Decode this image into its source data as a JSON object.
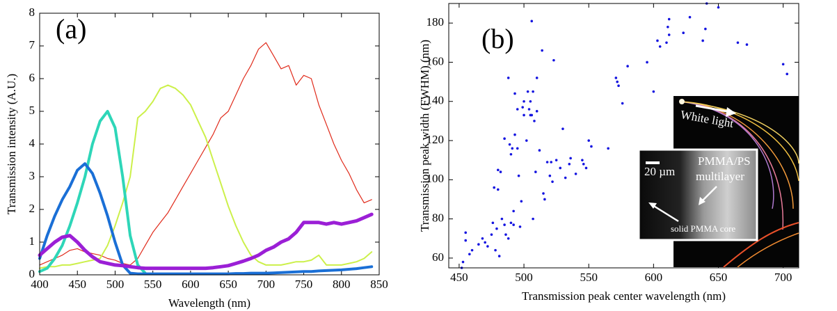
{
  "chart_data": [
    {
      "type": "line",
      "xlabel": "Wavelength (nm)",
      "ylabel": "Transmission intensity (A.U.)",
      "annotations": [
        "(a)"
      ],
      "xlim": [
        400,
        850
      ],
      "xticks": [
        400,
        450,
        500,
        550,
        600,
        650,
        700,
        750,
        800,
        850
      ],
      "ylim": [
        0,
        8
      ],
      "yticks": [
        0,
        1,
        2,
        3,
        4,
        5,
        6,
        7,
        8
      ],
      "x": [
        400,
        410,
        420,
        430,
        440,
        450,
        460,
        470,
        480,
        490,
        500,
        510,
        520,
        530,
        540,
        550,
        560,
        570,
        580,
        590,
        600,
        610,
        620,
        630,
        640,
        650,
        660,
        670,
        680,
        690,
        700,
        710,
        720,
        730,
        740,
        750,
        760,
        770,
        780,
        790,
        800,
        810,
        820,
        830,
        840
      ],
      "series": [
        {
          "color": "#e02a1a",
          "width": 1.2,
          "values": [
            0.3,
            0.4,
            0.5,
            0.6,
            0.75,
            0.8,
            0.7,
            0.65,
            0.6,
            0.5,
            0.45,
            0.35,
            0.3,
            0.5,
            0.9,
            1.3,
            1.6,
            1.9,
            2.3,
            2.7,
            3.1,
            3.5,
            3.9,
            4.3,
            4.8,
            5.0,
            5.5,
            6.0,
            6.4,
            6.9,
            7.1,
            6.7,
            6.3,
            6.4,
            5.8,
            6.1,
            6.0,
            5.2,
            4.6,
            4.0,
            3.5,
            3.1,
            2.6,
            2.2,
            2.3
          ]
        },
        {
          "color": "#ccf04a",
          "width": 2,
          "values": [
            0.2,
            0.25,
            0.25,
            0.3,
            0.3,
            0.35,
            0.4,
            0.45,
            0.5,
            0.9,
            1.5,
            2.2,
            3.0,
            4.8,
            5.0,
            5.3,
            5.7,
            5.8,
            5.7,
            5.5,
            5.2,
            4.7,
            4.2,
            3.5,
            2.8,
            2.1,
            1.5,
            1.0,
            0.6,
            0.4,
            0.3,
            0.3,
            0.3,
            0.35,
            0.4,
            0.4,
            0.45,
            0.6,
            0.3,
            0.3,
            0.3,
            0.35,
            0.4,
            0.5,
            0.7
          ]
        },
        {
          "color": "#2ed6b8",
          "width": 4,
          "values": [
            0.1,
            0.2,
            0.5,
            0.9,
            1.5,
            2.2,
            3.0,
            4.0,
            4.7,
            5.0,
            4.5,
            3.0,
            1.2,
            0.3,
            0.05,
            null,
            null,
            null,
            null,
            null,
            null,
            null,
            null,
            null,
            null,
            null,
            null,
            null,
            null,
            null,
            null,
            null,
            null,
            null,
            null,
            null,
            null,
            null,
            null,
            null,
            null,
            null,
            null,
            null,
            null
          ]
        },
        {
          "color": "#1a6fd6",
          "width": 4,
          "values": [
            0.5,
            1.2,
            1.8,
            2.3,
            2.7,
            3.2,
            3.4,
            3.1,
            2.5,
            1.8,
            1.0,
            0.3,
            0.05,
            0.03,
            0.03,
            0.03,
            0.03,
            0.03,
            0.03,
            0.03,
            0.03,
            0.03,
            0.03,
            0.03,
            0.03,
            0.03,
            0.04,
            0.04,
            0.05,
            0.05,
            0.05,
            0.06,
            0.07,
            0.08,
            0.09,
            0.1,
            0.1,
            0.12,
            0.13,
            0.14,
            0.15,
            0.17,
            0.19,
            0.22,
            0.25
          ]
        },
        {
          "color": "#9b1fd6",
          "width": 5,
          "values": [
            0.6,
            0.8,
            1.0,
            1.15,
            1.2,
            1.0,
            0.75,
            0.55,
            0.4,
            0.35,
            0.3,
            0.28,
            0.25,
            0.22,
            0.2,
            0.2,
            0.2,
            0.2,
            0.2,
            0.2,
            0.2,
            0.2,
            0.2,
            0.22,
            0.25,
            0.28,
            0.35,
            0.42,
            0.5,
            0.6,
            0.75,
            0.85,
            1.0,
            1.1,
            1.3,
            1.6,
            1.6,
            1.6,
            1.55,
            1.6,
            1.55,
            1.6,
            1.65,
            1.75,
            1.85
          ]
        }
      ]
    },
    {
      "type": "scatter",
      "xlabel": "Transmission peak center wavelength (nm)",
      "ylabel": "Transmission peak width (FWHM) (nm)",
      "annotations": [
        "(b)",
        "White light",
        "20 µm",
        "PMMA/PS",
        "multilayer",
        "solid PMMA core"
      ],
      "xlim": [
        442,
        712
      ],
      "xticks": [
        450,
        500,
        550,
        600,
        650,
        700
      ],
      "ylim": [
        55,
        190
      ],
      "yticks": [
        60,
        80,
        100,
        120,
        140,
        160,
        180
      ],
      "color": "#1414e0",
      "x": [
        452,
        453,
        455,
        455,
        458,
        460,
        465,
        468,
        470,
        472,
        475,
        476,
        477,
        478,
        479,
        480,
        480,
        481,
        482,
        483,
        485,
        485,
        486,
        488,
        488,
        489,
        490,
        490,
        491,
        492,
        492,
        493,
        493,
        495,
        495,
        496,
        497,
        498,
        499,
        500,
        500,
        502,
        503,
        504,
        505,
        505,
        506,
        506,
        507,
        507,
        508,
        509,
        510,
        510,
        512,
        514,
        515,
        516,
        518,
        520,
        521,
        522,
        523,
        525,
        528,
        530,
        532,
        535,
        536,
        540,
        545,
        546,
        548,
        550,
        552,
        565,
        571,
        572,
        573,
        576,
        580,
        595,
        600,
        603,
        605,
        610,
        611,
        612,
        612,
        623,
        628,
        638,
        640,
        641,
        650,
        665,
        672,
        700,
        703
      ],
      "values": [
        55,
        58,
        69,
        73,
        62,
        64,
        67,
        70,
        68,
        66,
        72,
        78,
        96,
        64,
        75,
        95,
        105,
        61,
        104,
        80,
        121,
        77,
        72,
        152,
        70,
        118,
        78,
        113,
        116,
        84,
        77,
        144,
        123,
        136,
        116,
        102,
        76,
        89,
        137,
        140,
        133,
        120,
        145,
        136,
        140,
        133,
        181,
        133,
        145,
        80,
        130,
        104,
        152,
        135,
        115,
        166,
        93,
        90,
        109,
        102,
        109,
        99,
        161,
        110,
        106,
        126,
        101,
        108,
        111,
        103,
        110,
        108,
        106,
        120,
        117,
        116,
        152,
        150,
        148,
        139,
        158,
        160,
        145,
        171,
        168,
        170,
        178,
        182,
        174,
        175,
        183,
        171,
        177,
        190,
        188,
        170,
        169,
        159,
        154
      ]
    }
  ]
}
